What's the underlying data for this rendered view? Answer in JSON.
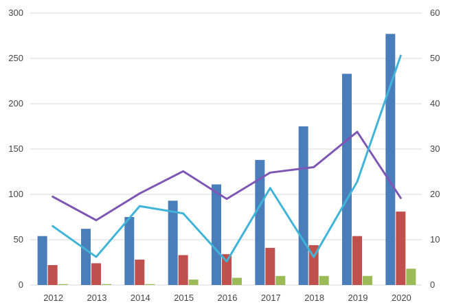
{
  "chart_data": {
    "type": "bar",
    "title": "",
    "xlabel": "",
    "ylabel": "",
    "y2label": "",
    "categories": [
      "2012",
      "2013",
      "2014",
      "2015",
      "2016",
      "2017",
      "2018",
      "2019",
      "2020"
    ],
    "ylim": [
      0,
      300
    ],
    "y2lim": [
      0,
      60
    ],
    "yticks": [
      "0",
      "50",
      "100",
      "150",
      "200",
      "250",
      "300"
    ],
    "y2ticks": [
      "0",
      "10",
      "20",
      "30",
      "40",
      "50",
      "60"
    ],
    "grid": true,
    "legend": "none",
    "series": [
      {
        "type": "bar",
        "axis": "left",
        "color": "#4a7ebb",
        "values": [
          54,
          62,
          75,
          93,
          111,
          138,
          175,
          233,
          277
        ]
      },
      {
        "type": "bar",
        "axis": "left",
        "color": "#c0504d",
        "values": [
          22,
          24,
          28,
          33,
          34,
          41,
          44,
          54,
          81
        ]
      },
      {
        "type": "bar",
        "axis": "left",
        "color": "#9bbb59",
        "values": [
          1,
          1,
          1,
          6,
          8,
          10,
          10,
          10,
          18
        ]
      },
      {
        "type": "line",
        "axis": "right",
        "color": "#7e57b5",
        "values": [
          19.5,
          14.3,
          20.2,
          25.1,
          19.0,
          24.8,
          26.0,
          33.8,
          19.2
        ]
      },
      {
        "type": "line",
        "axis": "right",
        "color": "#40b4d8",
        "values": [
          13.0,
          6.2,
          17.4,
          15.8,
          5.2,
          21.4,
          6.2,
          22.8,
          50.6
        ]
      }
    ]
  }
}
